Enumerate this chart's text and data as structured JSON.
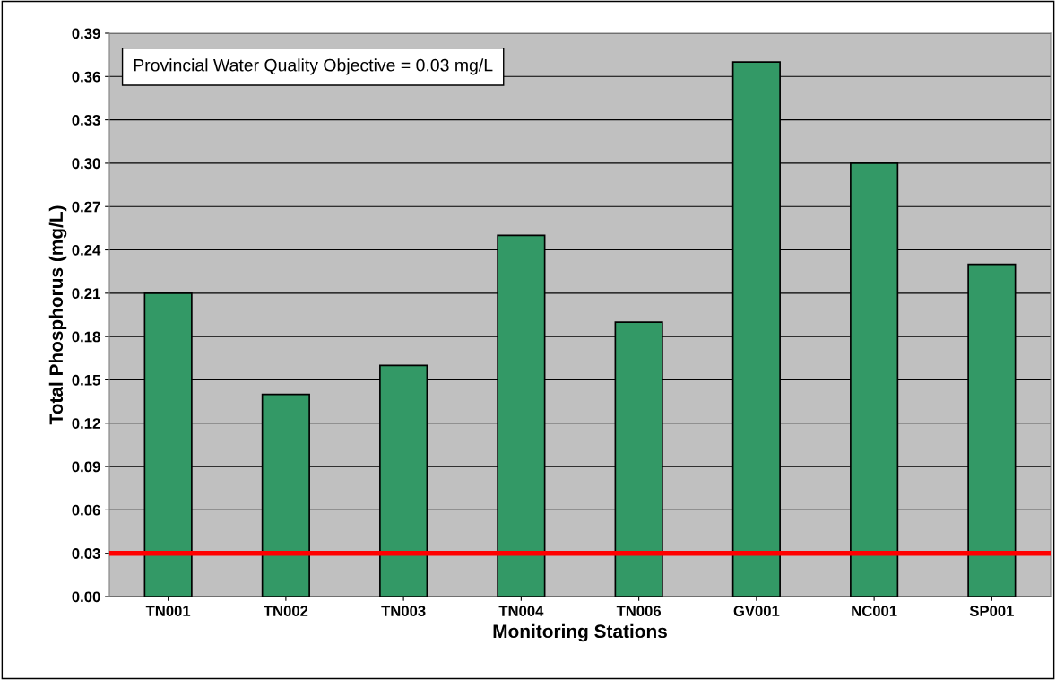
{
  "chart_data": {
    "type": "bar",
    "xlabel": "Monitoring Stations",
    "ylabel": "Total Phosphorus (mg/L)",
    "categories": [
      "TN001",
      "TN002",
      "TN003",
      "TN004",
      "TN006",
      "GV001",
      "NC001",
      "SP001"
    ],
    "values": [
      0.21,
      0.14,
      0.16,
      0.25,
      0.19,
      0.37,
      0.3,
      0.23
    ],
    "color": "#339966",
    "ylim": [
      0,
      0.39
    ],
    "yticks": [
      {
        "value": 0,
        "label": "0.00"
      },
      {
        "value": 0.03,
        "label": "0.03"
      },
      {
        "value": 0.06,
        "label": "0.06"
      },
      {
        "value": 0.09,
        "label": "0.09"
      },
      {
        "value": 0.12,
        "label": "0.12"
      },
      {
        "value": 0.15,
        "label": "0.15"
      },
      {
        "value": 0.18,
        "label": "0.18"
      },
      {
        "value": 0.21,
        "label": "0.21"
      },
      {
        "value": 0.24,
        "label": "0.24"
      },
      {
        "value": 0.27,
        "label": "0.27"
      },
      {
        "value": 0.3,
        "label": "0.30"
      },
      {
        "value": 0.33,
        "label": "0.33"
      },
      {
        "value": 0.36,
        "label": "0.36"
      },
      {
        "value": 0.39,
        "label": "0.39"
      }
    ],
    "grid": "y",
    "legend": false,
    "ref_lines": [
      {
        "axis": "y",
        "value": 0.03,
        "color": "#ff0000",
        "line_style": "solid"
      }
    ],
    "annotations": [
      "Provincial Water Quality Objective = 0.03 mg/L"
    ]
  }
}
